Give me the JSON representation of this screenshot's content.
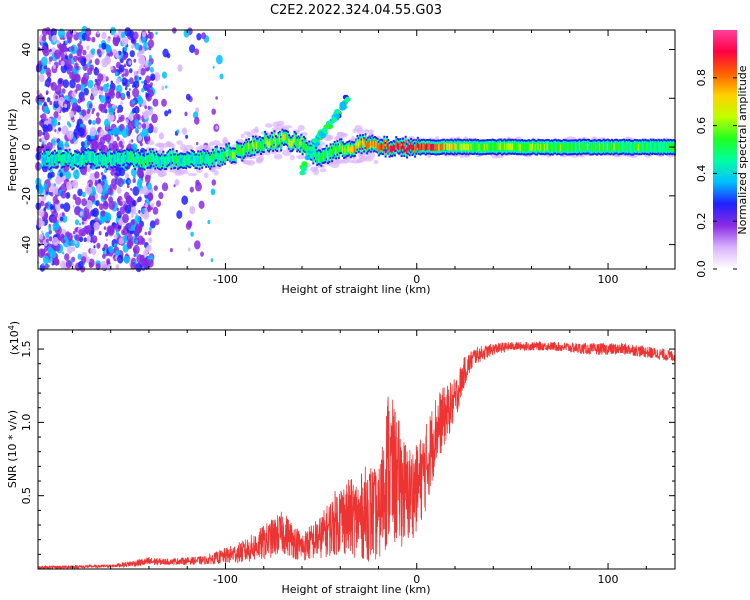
{
  "title": "C2E2.2022.324.04.55.G03",
  "chart_data": [
    {
      "type": "heatmap",
      "id": "spectrogram",
      "xlabel": "Height of straight line (km)",
      "ylabel": "Frequency (Hz)",
      "xlim": [
        -198,
        135
      ],
      "ylim": [
        -50,
        48
      ],
      "xticks": [
        -100,
        0,
        100
      ],
      "yticks": [
        -40,
        -20,
        0,
        20,
        40
      ],
      "colorbar": {
        "label": "Normalized spectral amplitude",
        "range": [
          0.0,
          1.0
        ],
        "ticks": [
          0.0,
          0.2,
          0.4,
          0.6,
          0.8
        ],
        "colormap": [
          "#ffffff",
          "#d9b3ff",
          "#8a2be2",
          "#2020ff",
          "#00c0ff",
          "#00ffa0",
          "#20ff20",
          "#c0ff00",
          "#ffd000",
          "#ff6000",
          "#ff0040",
          "#ff40a0"
        ]
      },
      "trace": {
        "x": [
          -195,
          -170,
          -150,
          -130,
          -110,
          -100,
          -90,
          -80,
          -70,
          -60,
          -55,
          -50,
          -45,
          -40,
          -35,
          -30,
          -25,
          -20,
          -10,
          0,
          10,
          20,
          40,
          60,
          80,
          100,
          120,
          135
        ],
        "y": [
          -5,
          -5,
          -5,
          -5,
          -5,
          -3,
          -1,
          2,
          3,
          1,
          -3,
          -4,
          -2,
          -1,
          0,
          1,
          1,
          0,
          0,
          0,
          0,
          0,
          0,
          0,
          0,
          0,
          0,
          0
        ],
        "amplitude": [
          0.45,
          0.4,
          0.45,
          0.45,
          0.45,
          0.55,
          0.55,
          0.6,
          0.65,
          0.6,
          0.5,
          0.5,
          0.55,
          0.6,
          0.7,
          0.8,
          0.85,
          0.9,
          0.95,
          0.95,
          0.9,
          0.65,
          0.6,
          0.58,
          0.55,
          0.55,
          0.52,
          0.5
        ]
      },
      "branch": {
        "x": [
          -60,
          -55,
          -50,
          -45,
          -40,
          -35
        ],
        "y": [
          -10,
          0,
          5,
          10,
          15,
          22
        ]
      }
    },
    {
      "type": "line",
      "id": "snr",
      "xlabel": "Height of straight line (km)",
      "ylabel": "SNR (10 * v/v)",
      "y_multiplier": "(x10",
      "y_multiplier_exp": "4",
      "y_multiplier_close": ")",
      "xlim": [
        -198,
        135
      ],
      "ylim": [
        0,
        1.63
      ],
      "xticks": [
        -100,
        0,
        100
      ],
      "yticks": [
        0.5,
        1.0,
        1.5
      ],
      "ytick_labels": [
        "0.5",
        "1.0",
        "1.5"
      ],
      "color": "#ee3333",
      "envelope": {
        "x": [
          -198,
          -160,
          -140,
          -130,
          -110,
          -90,
          -80,
          -70,
          -60,
          -50,
          -40,
          -30,
          -25,
          -20,
          -15,
          -10,
          -5,
          0,
          5,
          10,
          15,
          20,
          25,
          30,
          40,
          50,
          70,
          90,
          110,
          135
        ],
        "mean": [
          0.01,
          0.02,
          0.05,
          0.05,
          0.06,
          0.12,
          0.18,
          0.25,
          0.15,
          0.22,
          0.35,
          0.35,
          0.4,
          0.35,
          0.7,
          0.6,
          0.5,
          0.55,
          0.7,
          0.95,
          1.05,
          1.15,
          1.35,
          1.45,
          1.5,
          1.52,
          1.52,
          1.5,
          1.5,
          1.45
        ],
        "spread": [
          0.01,
          0.01,
          0.03,
          0.02,
          0.03,
          0.08,
          0.12,
          0.15,
          0.1,
          0.15,
          0.25,
          0.28,
          0.35,
          0.3,
          0.55,
          0.45,
          0.35,
          0.3,
          0.3,
          0.25,
          0.2,
          0.15,
          0.1,
          0.06,
          0.04,
          0.03,
          0.03,
          0.04,
          0.04,
          0.04
        ]
      }
    }
  ]
}
